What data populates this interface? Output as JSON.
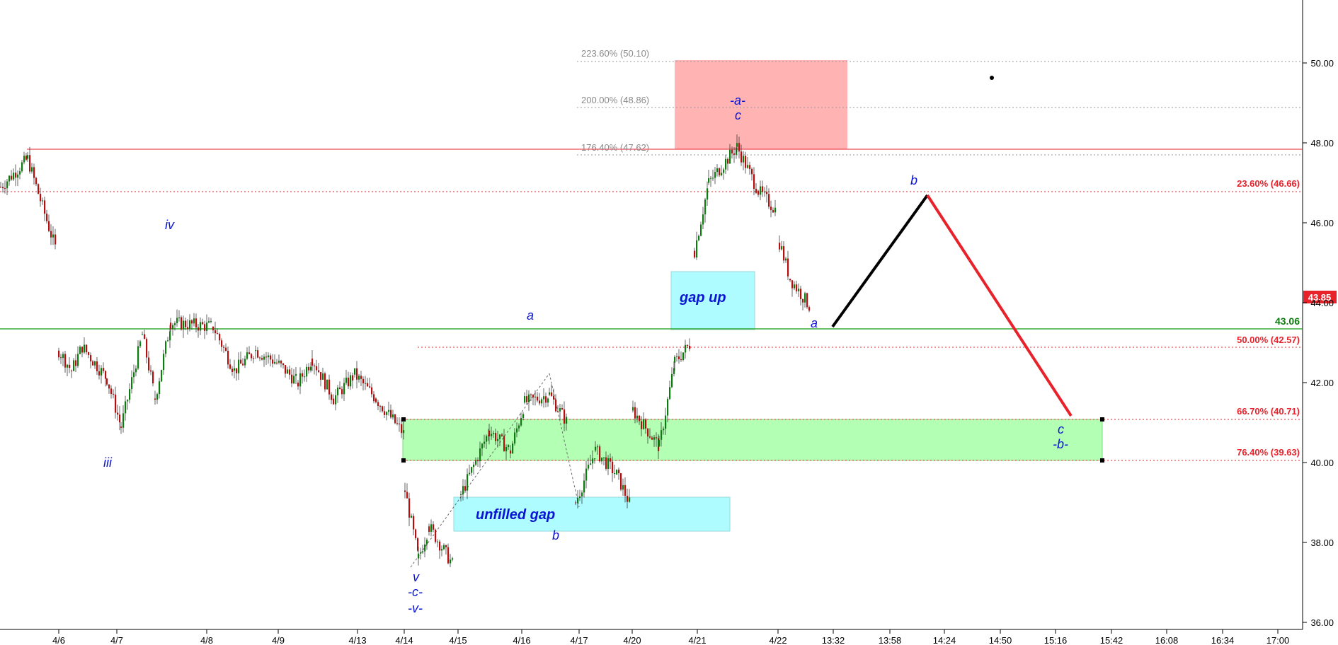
{
  "chart_data": {
    "type": "candlestick",
    "title": "",
    "ylim": [
      35.2,
      51.5
    ],
    "y_ticks": [
      "36.00",
      "38.00",
      "40.00",
      "42.00",
      "44.00",
      "46.00",
      "48.00",
      "50.00"
    ],
    "x_ticks": [
      "4/6",
      "4/7",
      "4/8",
      "4/9",
      "4/13",
      "4/14",
      "4/15",
      "4/16",
      "4/17",
      "4/20",
      "4/21",
      "4/22",
      "13:32",
      "13:58",
      "14:24",
      "14:50",
      "15:16",
      "15:42",
      "16:08",
      "16:34",
      "17:00"
    ],
    "last_price": "43.85",
    "last_price_color": "#e8222b",
    "up_color": "#0f7a0f",
    "down_color": "#b01010",
    "horizontal_levels": [
      {
        "label": "43.06",
        "value": 43.06,
        "color": "#0f7a0f"
      },
      {
        "label": "",
        "value": 47.78,
        "color": "#e8222b"
      }
    ],
    "retracements": [
      {
        "label": "23.60% (46.66)",
        "value": 46.66
      },
      {
        "label": "50.00% (42.57)",
        "value": 42.57
      },
      {
        "label": "66.70% (40.71)",
        "value": 40.71
      },
      {
        "label": "76.40% (39.63)",
        "value": 39.63
      }
    ],
    "extensions": [
      {
        "label": "223.60% (50.10)",
        "value": 50.1
      },
      {
        "label": "200.00% (48.86)",
        "value": 48.86
      },
      {
        "label": "176.40% (47.62)",
        "value": 47.62
      }
    ],
    "zones": [
      {
        "name": "target-zone",
        "color": "#ffb3b3",
        "y_top": 50.1,
        "y_bottom": 47.78
      },
      {
        "name": "support-zone",
        "color": "#b3ffb3",
        "y_top": 40.71,
        "y_bottom": 39.63
      },
      {
        "name": "gap-up-box",
        "label": "gap up",
        "color": "#aefcff",
        "y_top": 44.62,
        "y_bottom": 43.06
      },
      {
        "name": "unfilled-gap-box",
        "label": "unfilled gap",
        "color": "#aefcff",
        "y_top": 38.62,
        "y_bottom": 37.72
      }
    ],
    "wave_labels": [
      "iv",
      "iii",
      "a",
      "v",
      "-c-",
      "-v-",
      "b",
      "-a-",
      "c",
      "a",
      "b",
      "c",
      "-b-"
    ],
    "projection": [
      {
        "name": "projection-up-leg",
        "color": "#000000",
        "from": 43.1,
        "to": 46.6
      },
      {
        "name": "projection-down-leg",
        "color": "#e8222b",
        "from": 46.6,
        "to": 40.8
      }
    ],
    "candles": []
  }
}
